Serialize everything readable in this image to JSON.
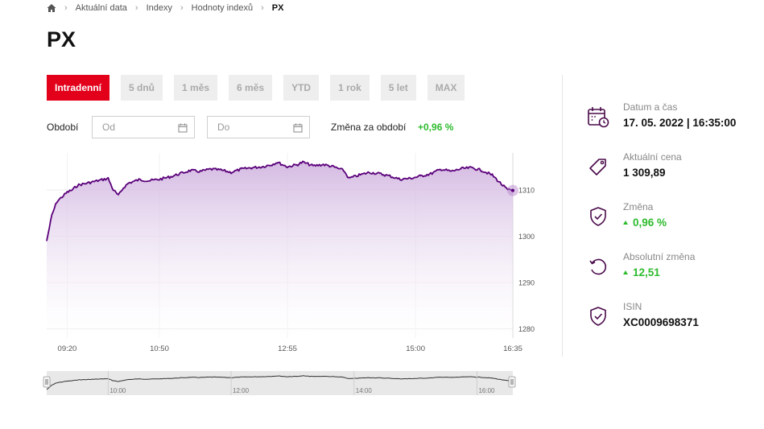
{
  "breadcrumb": {
    "home_icon": "home-icon",
    "items": [
      "Aktuální data",
      "Indexy",
      "Hodnoty indexů"
    ],
    "current": "PX"
  },
  "title": "PX",
  "tabs": [
    {
      "label": "Intradenní",
      "active": true
    },
    {
      "label": "5 dnů",
      "active": false
    },
    {
      "label": "1 měs",
      "active": false
    },
    {
      "label": "6 měs",
      "active": false
    },
    {
      "label": "YTD",
      "active": false
    },
    {
      "label": "1 rok",
      "active": false
    },
    {
      "label": "5 let",
      "active": false
    },
    {
      "label": "MAX",
      "active": false
    }
  ],
  "period": {
    "label": "Období",
    "from_placeholder": "Od",
    "to_placeholder": "Do",
    "change_label": "Změna za období",
    "change_value": "+0,96 %"
  },
  "colors": {
    "accent": "#e2001a",
    "line": "#5a007a",
    "positive": "#2dbb2d",
    "icon": "#4a0a4a"
  },
  "chart_data": {
    "type": "area",
    "x_ticks": [
      "09:20",
      "10:50",
      "12:55",
      "15:00",
      "16:35"
    ],
    "y_ticks": [
      1280,
      1290,
      1300,
      1310
    ],
    "ylim": [
      1278,
      1318
    ],
    "points": [
      [
        "09:00",
        1299.0
      ],
      [
        "09:05",
        1304.5
      ],
      [
        "09:10",
        1307.5
      ],
      [
        "09:15",
        1308.5
      ],
      [
        "09:20",
        1309.5
      ],
      [
        "09:25",
        1310.0
      ],
      [
        "09:30",
        1311.0
      ],
      [
        "09:40",
        1311.5
      ],
      [
        "09:50",
        1312.0
      ],
      [
        "10:00",
        1312.5
      ],
      [
        "10:05",
        1310.0
      ],
      [
        "10:10",
        1308.8
      ],
      [
        "10:15",
        1310.5
      ],
      [
        "10:20",
        1311.5
      ],
      [
        "10:30",
        1312.2
      ],
      [
        "10:40",
        1312.0
      ],
      [
        "10:50",
        1312.3
      ],
      [
        "11:00",
        1312.8
      ],
      [
        "11:10",
        1313.5
      ],
      [
        "11:20",
        1314.2
      ],
      [
        "11:30",
        1314.0
      ],
      [
        "11:40",
        1314.5
      ],
      [
        "11:50",
        1314.3
      ],
      [
        "12:00",
        1313.8
      ],
      [
        "12:10",
        1314.5
      ],
      [
        "12:20",
        1314.8
      ],
      [
        "12:30",
        1315.0
      ],
      [
        "12:40",
        1315.5
      ],
      [
        "12:45",
        1316.0
      ],
      [
        "12:55",
        1315.0
      ],
      [
        "13:05",
        1315.5
      ],
      [
        "13:10",
        1316.0
      ],
      [
        "13:20",
        1315.2
      ],
      [
        "13:30",
        1315.5
      ],
      [
        "13:40",
        1315.0
      ],
      [
        "13:50",
        1314.2
      ],
      [
        "13:55",
        1312.5
      ],
      [
        "14:05",
        1313.2
      ],
      [
        "14:15",
        1313.8
      ],
      [
        "14:25",
        1313.5
      ],
      [
        "14:35",
        1313.0
      ],
      [
        "14:45",
        1312.3
      ],
      [
        "14:55",
        1312.5
      ],
      [
        "15:05",
        1313.0
      ],
      [
        "15:15",
        1313.5
      ],
      [
        "15:25",
        1314.5
      ],
      [
        "15:35",
        1314.0
      ],
      [
        "15:45",
        1314.6
      ],
      [
        "15:55",
        1314.8
      ],
      [
        "16:05",
        1314.2
      ],
      [
        "16:15",
        1313.2
      ],
      [
        "16:25",
        1311.0
      ],
      [
        "16:30",
        1310.0
      ],
      [
        "16:35",
        1309.89
      ]
    ],
    "navigator": {
      "ticks": [
        "10:00",
        "12:00",
        "14:00",
        "16:00"
      ]
    }
  },
  "sidebar": [
    {
      "icon": "calendar-clock-icon",
      "label": "Datum a čas",
      "value": "17. 05. 2022 | 16:35:00",
      "green": false
    },
    {
      "icon": "price-tag-icon",
      "label": "Aktuální cena",
      "value": "1 309,89",
      "green": false
    },
    {
      "icon": "shield-check-icon",
      "label": "Změna",
      "value": "0,96 %",
      "green": true
    },
    {
      "icon": "refresh-icon",
      "label": "Absolutní změna",
      "value": "12,51",
      "green": true
    },
    {
      "icon": "shield-check-icon",
      "label": "ISIN",
      "value": "XC0009698371",
      "green": false
    }
  ]
}
